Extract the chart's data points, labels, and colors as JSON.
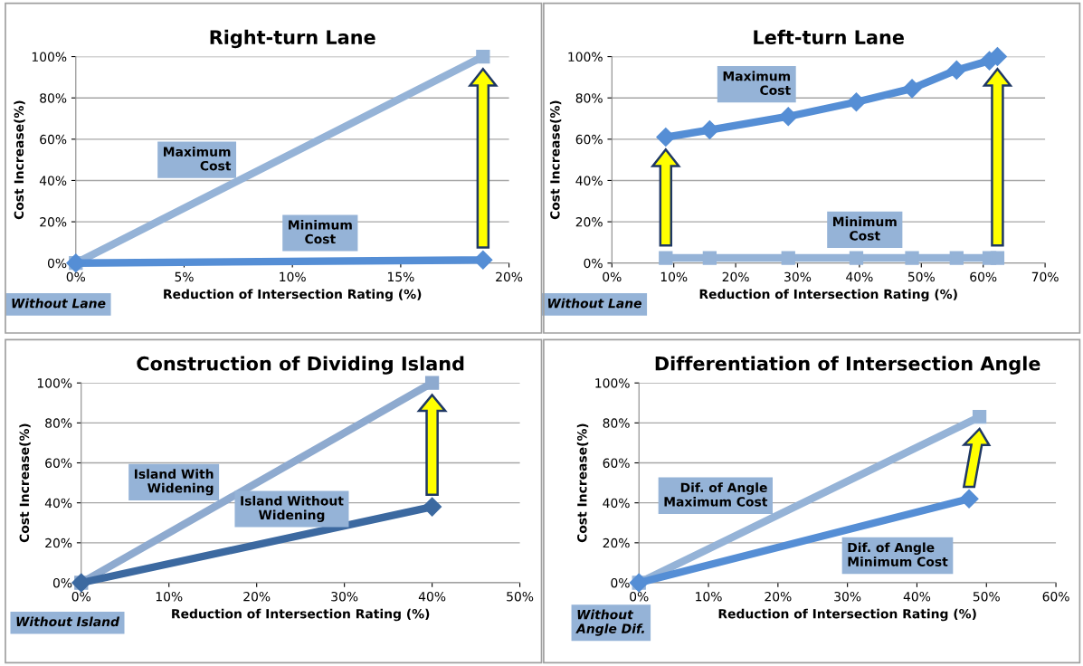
{
  "chart_data": [
    {
      "type": "line",
      "title": "Right-turn Lane",
      "xlabel": "Reduction of Intersection Rating (%)",
      "ylabel": "Cost Increase(%)",
      "annotations": [
        "Without Lane"
      ],
      "series": [
        {
          "name": "Maximum Cost",
          "color": "#95b3d7",
          "marker": "square",
          "x": [
            0,
            18.8
          ],
          "values": [
            0,
            100
          ]
        },
        {
          "name": "Minimum Cost",
          "color": "#558ed5",
          "marker": "diamond",
          "x": [
            0,
            18.8
          ],
          "values": [
            0,
            1.5
          ]
        }
      ],
      "xlim": [
        0,
        20
      ],
      "xticks": [
        {
          "value": 0,
          "label": "0%"
        },
        {
          "value": 5,
          "label": "5%"
        },
        {
          "value": 10,
          "label": "10%"
        },
        {
          "value": 15,
          "label": "15%"
        },
        {
          "value": 20,
          "label": "20%"
        }
      ],
      "ylim": [
        0,
        100
      ],
      "yticks": [
        {
          "value": 0,
          "label": "0%"
        },
        {
          "value": 20,
          "label": "20%"
        },
        {
          "value": 40,
          "label": "40%"
        },
        {
          "value": 60,
          "label": "60%"
        },
        {
          "value": 80,
          "label": "80%"
        },
        {
          "value": 100,
          "label": "100%"
        }
      ],
      "grid": "y",
      "legend": false,
      "line_style": "solid"
    },
    {
      "type": "line",
      "title": "Left-turn Lane",
      "xlabel": "Reduction of Intersection Rating (%)",
      "ylabel": "Cost Increase(%)",
      "annotations": [
        "Without Lane"
      ],
      "series": [
        {
          "name": "Maximum Cost",
          "color": "#558ed5",
          "marker": "diamond",
          "x": [
            8.7,
            15.8,
            28.5,
            39.5,
            48.5,
            55.7,
            61,
            62.3
          ],
          "values": [
            61,
            64.5,
            71,
            78,
            84.5,
            93.5,
            98,
            100
          ]
        },
        {
          "name": "Minimum Cost",
          "color": "#95b3d7",
          "marker": "square",
          "x": [
            8.7,
            15.8,
            28.5,
            39.5,
            48.5,
            55.7,
            61,
            62.3
          ],
          "values": [
            2.5,
            2.5,
            2.5,
            2.5,
            2.5,
            2.5,
            2.5,
            2.5
          ]
        }
      ],
      "xlim": [
        0,
        70
      ],
      "xticks": [
        {
          "value": 0,
          "label": "0%"
        },
        {
          "value": 10,
          "label": "10%"
        },
        {
          "value": 20,
          "label": "20%"
        },
        {
          "value": 30,
          "label": "30%"
        },
        {
          "value": 40,
          "label": "40%"
        },
        {
          "value": 50,
          "label": "50%"
        },
        {
          "value": 60,
          "label": "60%"
        },
        {
          "value": 70,
          "label": "70%"
        }
      ],
      "ylim": [
        0,
        100
      ],
      "yticks": [
        {
          "value": 0,
          "label": "0%"
        },
        {
          "value": 20,
          "label": "20%"
        },
        {
          "value": 40,
          "label": "40%"
        },
        {
          "value": 60,
          "label": "60%"
        },
        {
          "value": 80,
          "label": "80%"
        },
        {
          "value": 100,
          "label": "100%"
        }
      ],
      "grid": "y",
      "legend": false,
      "line_style": "solid"
    },
    {
      "type": "line",
      "title": "Construction of Dividing Island",
      "xlabel": "Reduction of Intersection Rating (%)",
      "ylabel": "Cost Increase(%)",
      "annotations": [
        "Without Island"
      ],
      "series": [
        {
          "name": "Island With Widening",
          "color": "#8eaacf",
          "marker": "square",
          "x": [
            0,
            40
          ],
          "values": [
            0,
            100
          ]
        },
        {
          "name": "Island Without Widening",
          "color": "#3c69a0",
          "marker": "diamond",
          "x": [
            0,
            40
          ],
          "values": [
            0,
            38
          ]
        }
      ],
      "xlim": [
        0,
        50
      ],
      "xticks": [
        {
          "value": 0,
          "label": "0%"
        },
        {
          "value": 10,
          "label": "10%"
        },
        {
          "value": 20,
          "label": "20%"
        },
        {
          "value": 30,
          "label": "30%"
        },
        {
          "value": 40,
          "label": "40%"
        },
        {
          "value": 50,
          "label": "50%"
        }
      ],
      "ylim": [
        0,
        100
      ],
      "yticks": [
        {
          "value": 0,
          "label": "0%"
        },
        {
          "value": 20,
          "label": "20%"
        },
        {
          "value": 40,
          "label": "40%"
        },
        {
          "value": 60,
          "label": "60%"
        },
        {
          "value": 80,
          "label": "80%"
        },
        {
          "value": 100,
          "label": "100%"
        }
      ],
      "grid": "y",
      "legend": false,
      "line_style": "solid"
    },
    {
      "type": "line",
      "title": "Differentiation of Intersection Angle",
      "xlabel": "Reduction of Intersection Rating (%)",
      "ylabel": "Cost Increase(%)",
      "annotations": [
        "Without\nAngle Dif."
      ],
      "series": [
        {
          "name": "Dif. of Angle Maximum Cost",
          "color": "#95b3d7",
          "marker": "square",
          "x": [
            0,
            49
          ],
          "values": [
            0,
            83
          ]
        },
        {
          "name": "Dif. of Angle Minimum Cost",
          "color": "#558ed5",
          "marker": "diamond",
          "x": [
            0,
            47.5
          ],
          "values": [
            0,
            42
          ]
        }
      ],
      "xlim": [
        0,
        60
      ],
      "xticks": [
        {
          "value": 0,
          "label": "0%"
        },
        {
          "value": 10,
          "label": "10%"
        },
        {
          "value": 20,
          "label": "20%"
        },
        {
          "value": 30,
          "label": "30%"
        },
        {
          "value": 40,
          "label": "40%"
        },
        {
          "value": 50,
          "label": "50%"
        },
        {
          "value": 60,
          "label": "60%"
        }
      ],
      "ylim": [
        0,
        100
      ],
      "yticks": [
        {
          "value": 0,
          "label": "0%"
        },
        {
          "value": 20,
          "label": "20%"
        },
        {
          "value": 40,
          "label": "40%"
        },
        {
          "value": 60,
          "label": "60%"
        },
        {
          "value": 80,
          "label": "80%"
        },
        {
          "value": 100,
          "label": "100%"
        }
      ],
      "grid": "y",
      "legend": false,
      "line_style": "solid"
    }
  ]
}
